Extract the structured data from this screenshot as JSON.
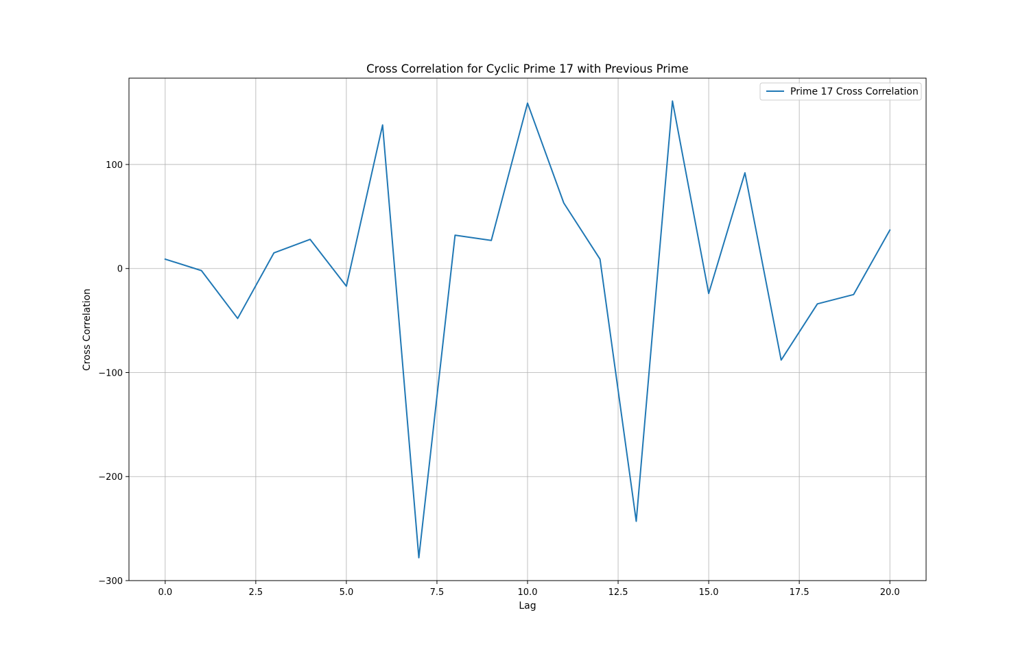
{
  "colors": {
    "series": "#1f77b4",
    "grid": "#b0b0b0",
    "axes": "#000000",
    "background": "#ffffff",
    "legend_border": "#cccccc"
  },
  "chart_data": {
    "type": "line",
    "title": "Cross Correlation for Cyclic Prime 17 with Previous Prime",
    "xlabel": "Lag",
    "ylabel": "Cross Correlation",
    "xlim": [
      -1,
      21
    ],
    "ylim": [
      -300,
      183
    ],
    "x_ticks": [
      0.0,
      2.5,
      5.0,
      7.5,
      10.0,
      12.5,
      15.0,
      17.5,
      20.0
    ],
    "x_tick_labels": [
      "0.0",
      "2.5",
      "5.0",
      "7.5",
      "10.0",
      "12.5",
      "15.0",
      "17.5",
      "20.0"
    ],
    "y_ticks": [
      -300,
      -200,
      -100,
      0,
      100
    ],
    "y_tick_labels": [
      "−300",
      "−200",
      "−100",
      "0",
      "100"
    ],
    "grid": true,
    "legend_position": "top-right",
    "series": [
      {
        "name": "Prime 17 Cross Correlation",
        "color": "#1f77b4",
        "x": [
          0,
          1,
          2,
          3,
          4,
          5,
          6,
          7,
          8,
          9,
          10,
          11,
          12,
          13,
          14,
          15,
          16,
          17,
          18,
          19,
          20
        ],
        "y": [
          9,
          -2,
          -48,
          15,
          28,
          -17,
          138,
          -278,
          32,
          27,
          159,
          63,
          9,
          -243,
          161,
          -24,
          92,
          -88,
          -34,
          -25,
          37
        ]
      }
    ]
  }
}
